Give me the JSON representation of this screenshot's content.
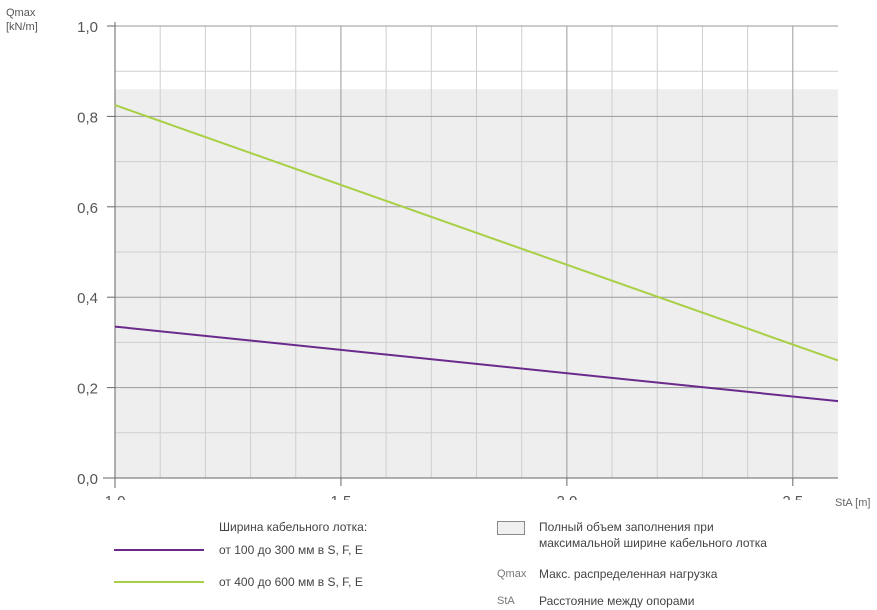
{
  "chart_data": {
    "type": "line",
    "ylabel_line1": "Qmax",
    "ylabel_line2": "[kN/m]",
    "xlabel": "StA [m]",
    "xlim": [
      1.0,
      2.6
    ],
    "ylim": [
      0.0,
      1.0
    ],
    "x_ticks": [
      "1,0",
      "1,5",
      "2,0",
      "2,5"
    ],
    "x_tick_values": [
      1.0,
      1.5,
      2.0,
      2.5
    ],
    "y_ticks": [
      "0,0",
      "0,2",
      "0,4",
      "0,6",
      "0,8",
      "1,0"
    ],
    "y_tick_values": [
      0.0,
      0.2,
      0.4,
      0.6,
      0.8,
      1.0
    ],
    "grid": true,
    "fill_region": {
      "y_max": 0.86,
      "color": "#eeeeee"
    },
    "series": [
      {
        "name": "от 100 до 300 мм в S, F, E",
        "color": "#6a2a8c",
        "x": [
          1.0,
          2.6
        ],
        "y": [
          0.335,
          0.17
        ]
      },
      {
        "name": "от 400 до 600 мм в S, F, E",
        "color": "#a8cf45",
        "x": [
          1.0,
          2.6
        ],
        "y": [
          0.825,
          0.26
        ]
      }
    ]
  },
  "legend": {
    "title": "Ширина кабельного лотка:",
    "fill_label_line1": "Полный объем заполнения при",
    "fill_label_line2": "максимальной ширине кабельного лотка",
    "qmax_abbr": "Qmax",
    "qmax_desc": "Макс. распределенная нагрузка",
    "sta_abbr": "StA",
    "sta_desc": "Расстояние между опорами"
  }
}
